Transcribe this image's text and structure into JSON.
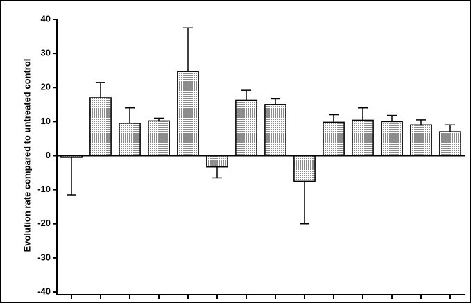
{
  "chart_data": {
    "type": "bar",
    "y_label": "Evolution rate compared to untreated control",
    "categories": [
      null,
      null,
      null,
      null,
      null,
      null,
      null,
      null,
      null,
      null,
      null,
      null,
      null,
      null
    ],
    "values": [
      -0.5,
      17,
      9.5,
      10.2,
      24.7,
      -3.3,
      16.3,
      15,
      -7.5,
      9.8,
      10.4,
      10,
      9,
      7
    ],
    "errors": [
      11,
      4.5,
      4.5,
      0.8,
      12.8,
      3.2,
      2.9,
      1.7,
      12.5,
      2.2,
      3.6,
      1.8,
      1.5,
      2
    ],
    "color": "#b0b0b0",
    "ylim": [
      -40,
      40
    ],
    "yticks": [
      -40,
      -30,
      -20,
      -10,
      0,
      10,
      20,
      30,
      40
    ]
  }
}
